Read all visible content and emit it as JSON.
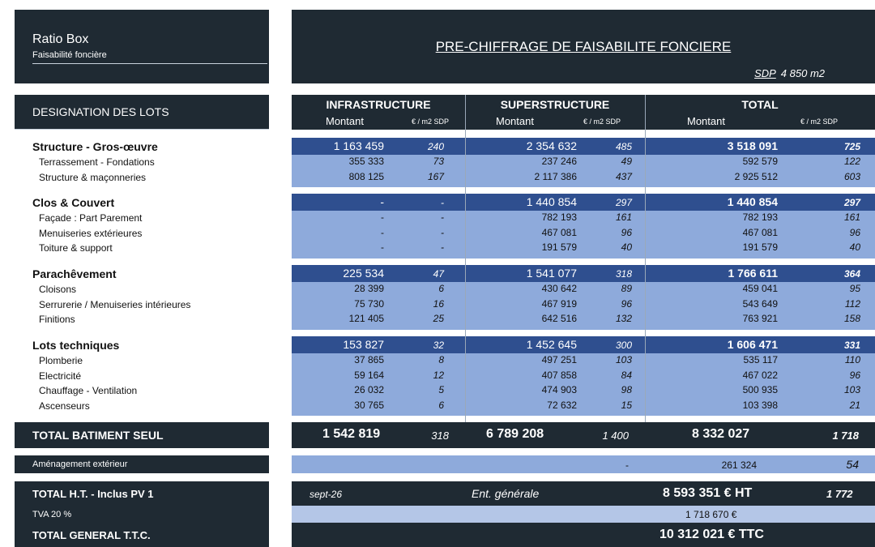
{
  "brand": {
    "title": "Ratio Box",
    "subtitle": "Faisabilité foncière"
  },
  "header": {
    "title": "PRE-CHIFFRAGE DE FAISABILITE FONCIERE",
    "sdp_label": "SDP",
    "sdp_value": "4 850  m2"
  },
  "columns": {
    "designation": "DESIGNATION DES LOTS",
    "infra": "INFRASTRUCTURE",
    "super": "SUPERSTRUCTURE",
    "total": "TOTAL",
    "montant": "Montant",
    "per_m2": "€ / m2 SDP"
  },
  "sections": [
    {
      "label": "Structure - Gros-œuvre",
      "values": [
        "1 163 459",
        "240",
        "2 354 632",
        "485",
        "3 518 091",
        "725"
      ],
      "rows": [
        {
          "label": "Terrassement - Fondations",
          "values": [
            "355 333",
            "73",
            "237 246",
            "49",
            "592 579",
            "122"
          ]
        },
        {
          "label": "Structure & maçonneries",
          "values": [
            "808 125",
            "167",
            "2 117 386",
            "437",
            "2 925 512",
            "603"
          ]
        }
      ]
    },
    {
      "label": "Clos & Couvert",
      "values": [
        "-",
        "-",
        "1 440 854",
        "297",
        "1 440 854",
        "297"
      ],
      "rows": [
        {
          "label": "Façade : Part Parement",
          "values": [
            "-",
            "-",
            "782 193",
            "161",
            "782 193",
            "161"
          ]
        },
        {
          "label": "Menuiseries extérieures",
          "values": [
            "-",
            "-",
            "467 081",
            "96",
            "467 081",
            "96"
          ]
        },
        {
          "label": "Toiture & support",
          "values": [
            "-",
            "-",
            "191 579",
            "40",
            "191 579",
            "40"
          ]
        }
      ]
    },
    {
      "label": "Parachêvement",
      "values": [
        "225 534",
        "47",
        "1 541 077",
        "318",
        "1 766 611",
        "364"
      ],
      "rows": [
        {
          "label": "Cloisons",
          "values": [
            "28 399",
            "6",
            "430 642",
            "89",
            "459 041",
            "95"
          ]
        },
        {
          "label": "Serrurerie / Menuiseries intérieures",
          "values": [
            "75 730",
            "16",
            "467 919",
            "96",
            "543 649",
            "112"
          ]
        },
        {
          "label": "Finitions",
          "values": [
            "121 405",
            "25",
            "642 516",
            "132",
            "763 921",
            "158"
          ]
        }
      ]
    },
    {
      "label": "Lots techniques",
      "values": [
        "153 827",
        "32",
        "1 452 645",
        "300",
        "1 606 471",
        "331"
      ],
      "rows": [
        {
          "label": "Plomberie",
          "values": [
            "37 865",
            "8",
            "497 251",
            "103",
            "535 117",
            "110"
          ]
        },
        {
          "label": "Electricité",
          "values": [
            "59 164",
            "12",
            "407 858",
            "84",
            "467 022",
            "96"
          ]
        },
        {
          "label": "Chauffage - Ventilation",
          "values": [
            "26 032",
            "5",
            "474 903",
            "98",
            "500 935",
            "103"
          ]
        },
        {
          "label": "Ascenseurs",
          "values": [
            "30 765",
            "6",
            "72 632",
            "15",
            "103 398",
            "21"
          ]
        }
      ]
    }
  ],
  "total_batiment": {
    "label": "TOTAL BATIMENT SEUL",
    "values": [
      "1 542 819",
      "318",
      "6 789 208",
      "1 400",
      "8 332 027",
      "1 718"
    ]
  },
  "amenagement": {
    "label": "Aménagement extérieur",
    "super": "-",
    "total": "261 324",
    "per": "54"
  },
  "total_ht": {
    "label": "TOTAL H.T. - Inclus PV 1",
    "date": "sept-26",
    "entreprise": "Ent. générale",
    "value": "8 593 351 € HT",
    "per": "1 772"
  },
  "tva": {
    "label": "TVA 20 %",
    "value": "1 718 670 €"
  },
  "total_ttc": {
    "label": "TOTAL GENERAL T.T.C.",
    "value": "10 312 021 € TTC"
  },
  "colors": {
    "dark": "#1f2a33",
    "head_row": "#2f4f8f",
    "sub_row": "#8eaadb",
    "light": "#b4c6e7"
  }
}
